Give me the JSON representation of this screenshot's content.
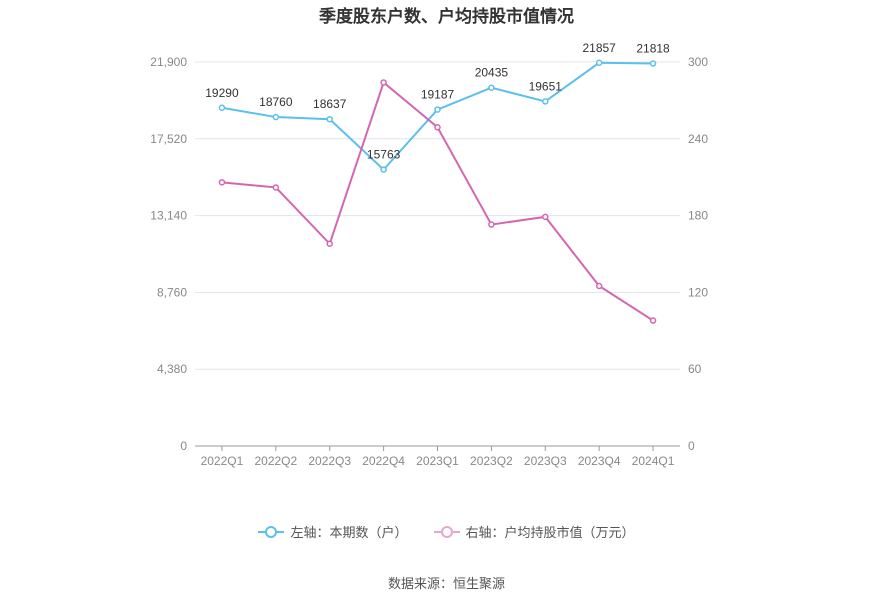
{
  "title": "季度股东户数、户均持股市值情况",
  "source_text": "数据来源：恒生聚源",
  "colors": {
    "left_series": "#5bc0eb",
    "right_series": "#d466b0",
    "grid": "#e3e3ee",
    "axis": "#999999",
    "label": "#888888"
  },
  "legend": [
    {
      "label": "左轴：本期数（户）",
      "color": "#5bc0eb"
    },
    {
      "label": "右轴：户均持股市值（万元）",
      "color": "#e8a6d2"
    }
  ],
  "chart_data": {
    "type": "line",
    "categories": [
      "2022Q1",
      "2022Q2",
      "2022Q3",
      "2022Q4",
      "2023Q1",
      "2023Q2",
      "2023Q3",
      "2023Q4",
      "2024Q1"
    ],
    "y_left": {
      "label": "本期数（户）",
      "ylim": [
        0,
        21900
      ],
      "ticks": [
        0,
        4380,
        8760,
        13140,
        17520,
        21900
      ],
      "tick_labels": [
        "0",
        "4,380",
        "8,760",
        "13,140",
        "17,520",
        "21,900"
      ]
    },
    "y_right": {
      "label": "户均持股市值（万元）",
      "ylim": [
        0,
        300
      ],
      "ticks": [
        0,
        60,
        120,
        180,
        240,
        300
      ],
      "tick_labels": [
        "0",
        "60",
        "120",
        "180",
        "240",
        "300"
      ]
    },
    "series": [
      {
        "name": "本期数（户）",
        "axis": "left",
        "values": [
          19290,
          18760,
          18637,
          15763,
          19187,
          20435,
          19651,
          21857,
          21818
        ],
        "data_labels": [
          "19290",
          "18760",
          "18637",
          "15763",
          "19187",
          "20435",
          "19651",
          "21857",
          "21818"
        ]
      },
      {
        "name": "户均持股市值（万元）",
        "axis": "right",
        "values": [
          206,
          202,
          158,
          284,
          249,
          173,
          179,
          125,
          98
        ]
      }
    ],
    "grid": true,
    "legend_position": "bottom"
  }
}
